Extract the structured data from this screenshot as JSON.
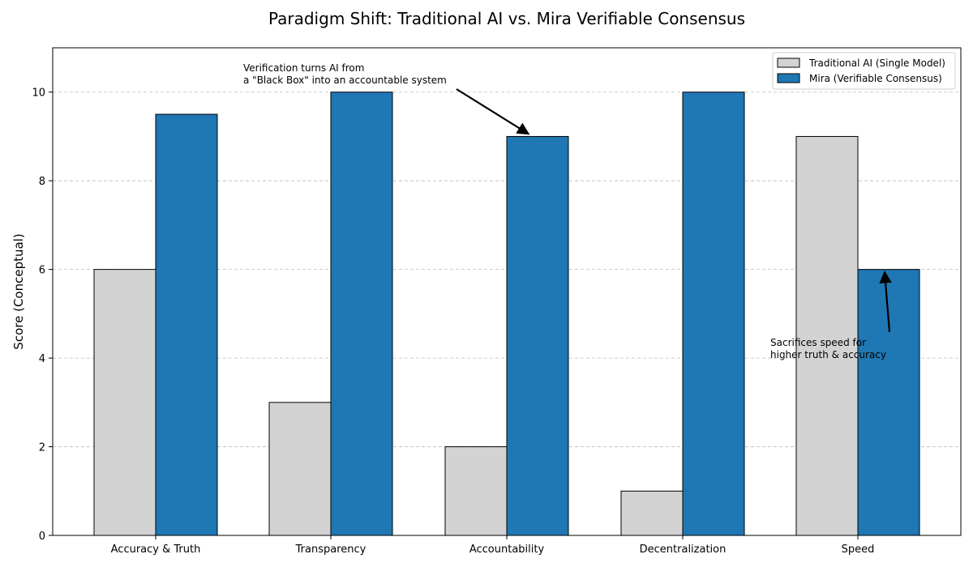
{
  "chart_data": {
    "type": "bar",
    "title": "Paradigm Shift: Traditional AI vs. Mira Verifiable Consensus",
    "xlabel": "",
    "ylabel": "Score (Conceptual)",
    "ylim": [
      0,
      11
    ],
    "yticks": [
      0,
      2,
      4,
      6,
      8,
      10
    ],
    "grid": true,
    "legend_position": "top-right",
    "categories": [
      "Accuracy & Truth",
      "Transparency",
      "Accountability",
      "Decentralization",
      "Speed"
    ],
    "series": [
      {
        "name": "Traditional AI (Single Model)",
        "color": "#d3d3d3",
        "values": [
          6,
          3,
          2,
          1,
          9
        ]
      },
      {
        "name": "Mira (Verifiable Consensus)",
        "color": "#1f77b4",
        "values": [
          9.5,
          10,
          9,
          10,
          6
        ]
      }
    ],
    "annotations": [
      {
        "lines": [
          "Verification turns AI from",
          "a \"Black Box\" into an accountable system"
        ],
        "target_category": "Accountability",
        "target_series": 1
      },
      {
        "lines": [
          "Sacrifices speed for",
          "higher truth & accuracy"
        ],
        "target_category": "Speed",
        "target_series": 1
      }
    ]
  }
}
